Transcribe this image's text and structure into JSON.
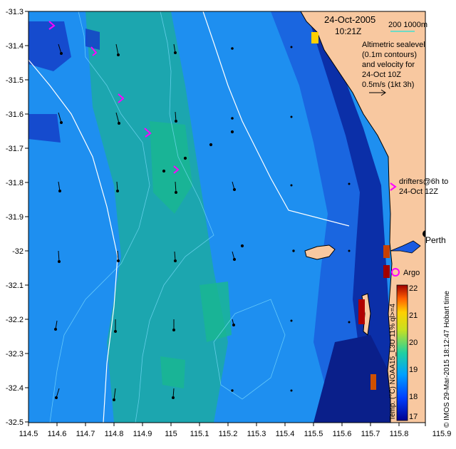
{
  "map": {
    "date": "24-Oct-2005",
    "time": "10:21Z",
    "scale_label": "200  1000m",
    "legend_lines": [
      "Altimetric sealevel",
      "(0.1m contours)",
      "and velocity for",
      "24-Oct 10Z",
      "0.5m/s (1kt 3h)"
    ],
    "drifter_lines": [
      "drifters@6h to",
      "24-Oct 12Z"
    ],
    "places": {
      "perth": "Perth",
      "argo": "Argo"
    },
    "credit": "© IMOS 29-Mar-2015 18:12:47 Hobart time",
    "colorbar_title": "Temp. (°C) NOAA15_L3U 11% ql>=4",
    "colorbar_ticks": [
      "22",
      "21",
      "20",
      "19",
      "18",
      "17"
    ],
    "x_ticks": [
      "114.5",
      "114.6",
      "114.7",
      "114.8",
      "114.9",
      "115",
      "115.1",
      "115.2",
      "115.3",
      "115.4",
      "115.5",
      "115.6",
      "115.7",
      "115.8",
      "115.9"
    ],
    "y_ticks": [
      "-31.3",
      "-31.4",
      "-31.5",
      "-31.6",
      "-31.7",
      "-31.8",
      "-31.9",
      "-32",
      "-32.1",
      "-32.2",
      "-32.3",
      "-32.4",
      "-32.5"
    ],
    "colors": {
      "land": "#f8c8a0",
      "ocean_mid": "#1e90ff",
      "shelf": "#1e6fe0",
      "deep_inshore": "#0a2a9a",
      "drifter": "#ff00ff"
    }
  }
}
